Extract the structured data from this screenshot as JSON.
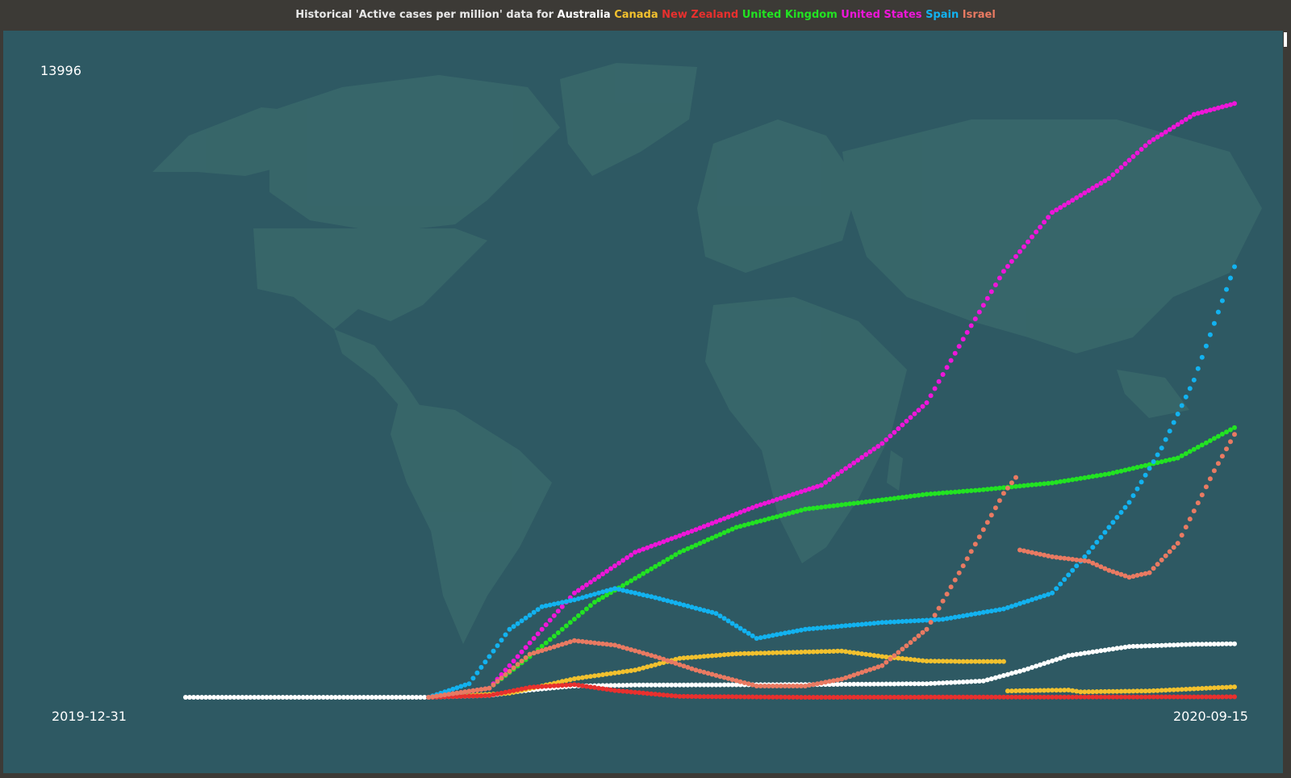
{
  "chart_data": {
    "type": "scatter",
    "title_prefix": "Historical 'Active cases per million' data for",
    "x_start_label": "2019-12-31",
    "x_end_label": "2020-09-15",
    "y_max_label": "13996",
    "x_range": [
      "2019-12-31",
      "2020-09-15"
    ],
    "ylim": [
      0,
      13996
    ],
    "grid": false,
    "legend": "top (in title)",
    "series": [
      {
        "name": "Australia",
        "color": "#ffffff",
        "points": [
          [
            "2019-12-31",
            0
          ],
          [
            "2020-02-29",
            0
          ],
          [
            "2020-03-15",
            40
          ],
          [
            "2020-03-25",
            160
          ],
          [
            "2020-04-05",
            250
          ],
          [
            "2020-04-20",
            270
          ],
          [
            "2020-06-01",
            280
          ],
          [
            "2020-07-01",
            300
          ],
          [
            "2020-07-15",
            360
          ],
          [
            "2020-07-25",
            600
          ],
          [
            "2020-08-05",
            920
          ],
          [
            "2020-08-20",
            1120
          ],
          [
            "2020-09-05",
            1170
          ],
          [
            "2020-09-15",
            1180
          ]
        ]
      },
      {
        "name": "Canada",
        "color": "#f2c12e",
        "points": [
          [
            "2020-02-29",
            0
          ],
          [
            "2020-03-20",
            90
          ],
          [
            "2020-04-05",
            410
          ],
          [
            "2020-04-20",
            600
          ],
          [
            "2020-05-01",
            860
          ],
          [
            "2020-05-15",
            960
          ],
          [
            "2020-06-01",
            1000
          ],
          [
            "2020-06-10",
            1020
          ],
          [
            "2020-06-20",
            900
          ],
          [
            "2020-07-01",
            800
          ],
          [
            "2020-07-10",
            790
          ],
          [
            "2020-07-20",
            790
          ],
          [
            "2020-07-21",
            140
          ],
          [
            "2020-08-05",
            160
          ],
          [
            "2020-08-08",
            120
          ],
          [
            "2020-08-25",
            140
          ],
          [
            "2020-09-15",
            230
          ]
        ]
      },
      {
        "name": "New Zealand",
        "color": "#e8302e",
        "points": [
          [
            "2020-02-29",
            0
          ],
          [
            "2020-03-15",
            40
          ],
          [
            "2020-03-25",
            220
          ],
          [
            "2020-04-05",
            280
          ],
          [
            "2020-04-15",
            150
          ],
          [
            "2020-05-01",
            20
          ],
          [
            "2020-06-01",
            0
          ],
          [
            "2020-09-15",
            10
          ]
        ]
      },
      {
        "name": "United Kingdom",
        "color": "#22e322",
        "points": [
          [
            "2020-02-29",
            0
          ],
          [
            "2020-03-15",
            200
          ],
          [
            "2020-03-25",
            900
          ],
          [
            "2020-04-10",
            2100
          ],
          [
            "2020-05-01",
            3200
          ],
          [
            "2020-05-15",
            3750
          ],
          [
            "2020-06-01",
            4150
          ],
          [
            "2020-06-15",
            4300
          ],
          [
            "2020-07-01",
            4480
          ],
          [
            "2020-07-15",
            4580
          ],
          [
            "2020-08-01",
            4730
          ],
          [
            "2020-08-15",
            4930
          ],
          [
            "2020-09-01",
            5280
          ],
          [
            "2020-09-15",
            5950
          ]
        ]
      },
      {
        "name": "United States",
        "color": "#ee16d9",
        "points": [
          [
            "2020-02-29",
            0
          ],
          [
            "2020-03-15",
            200
          ],
          [
            "2020-03-25",
            1200
          ],
          [
            "2020-04-05",
            2300
          ],
          [
            "2020-04-20",
            3200
          ],
          [
            "2020-05-05",
            3700
          ],
          [
            "2020-05-20",
            4220
          ],
          [
            "2020-06-05",
            4680
          ],
          [
            "2020-06-20",
            5600
          ],
          [
            "2020-07-01",
            6500
          ],
          [
            "2020-07-10",
            7900
          ],
          [
            "2020-07-20",
            9400
          ],
          [
            "2020-08-01",
            10700
          ],
          [
            "2020-08-15",
            11450
          ],
          [
            "2020-08-25",
            12250
          ],
          [
            "2020-09-05",
            12860
          ],
          [
            "2020-09-15",
            13100
          ]
        ]
      },
      {
        "name": "Spain",
        "color": "#12b2f0",
        "points": [
          [
            "2020-02-29",
            0
          ],
          [
            "2020-03-10",
            300
          ],
          [
            "2020-03-20",
            1500
          ],
          [
            "2020-03-28",
            2000
          ],
          [
            "2020-04-05",
            2150
          ],
          [
            "2020-04-15",
            2400
          ],
          [
            "2020-04-25",
            2200
          ],
          [
            "2020-05-10",
            1850
          ],
          [
            "2020-05-20",
            1300
          ],
          [
            "2020-06-01",
            1500
          ],
          [
            "2020-06-20",
            1650
          ],
          [
            "2020-07-05",
            1720
          ],
          [
            "2020-07-20",
            1950
          ],
          [
            "2020-08-01",
            2300
          ],
          [
            "2020-08-10",
            3200
          ],
          [
            "2020-08-20",
            4300
          ],
          [
            "2020-08-28",
            5500
          ],
          [
            "2020-09-05",
            7000
          ],
          [
            "2020-09-15",
            9500
          ]
        ]
      },
      {
        "name": "Israel",
        "color": "#e97a62",
        "points": [
          [
            "2020-02-29",
            0
          ],
          [
            "2020-03-15",
            200
          ],
          [
            "2020-03-25",
            950
          ],
          [
            "2020-04-05",
            1250
          ],
          [
            "2020-04-15",
            1150
          ],
          [
            "2020-04-25",
            900
          ],
          [
            "2020-05-05",
            600
          ],
          [
            "2020-05-20",
            250
          ],
          [
            "2020-06-01",
            250
          ],
          [
            "2020-06-10",
            400
          ],
          [
            "2020-06-20",
            700
          ],
          [
            "2020-07-01",
            1500
          ],
          [
            "2020-07-10",
            2900
          ],
          [
            "2020-07-20",
            4500
          ],
          [
            "2020-07-23",
            4850
          ],
          [
            "2020-07-24",
            3250
          ],
          [
            "2020-08-01",
            3100
          ],
          [
            "2020-08-10",
            3000
          ],
          [
            "2020-08-15",
            2800
          ],
          [
            "2020-08-20",
            2650
          ],
          [
            "2020-08-25",
            2750
          ],
          [
            "2020-09-01",
            3400
          ],
          [
            "2020-09-10",
            5000
          ],
          [
            "2020-09-15",
            5800
          ]
        ]
      }
    ]
  }
}
